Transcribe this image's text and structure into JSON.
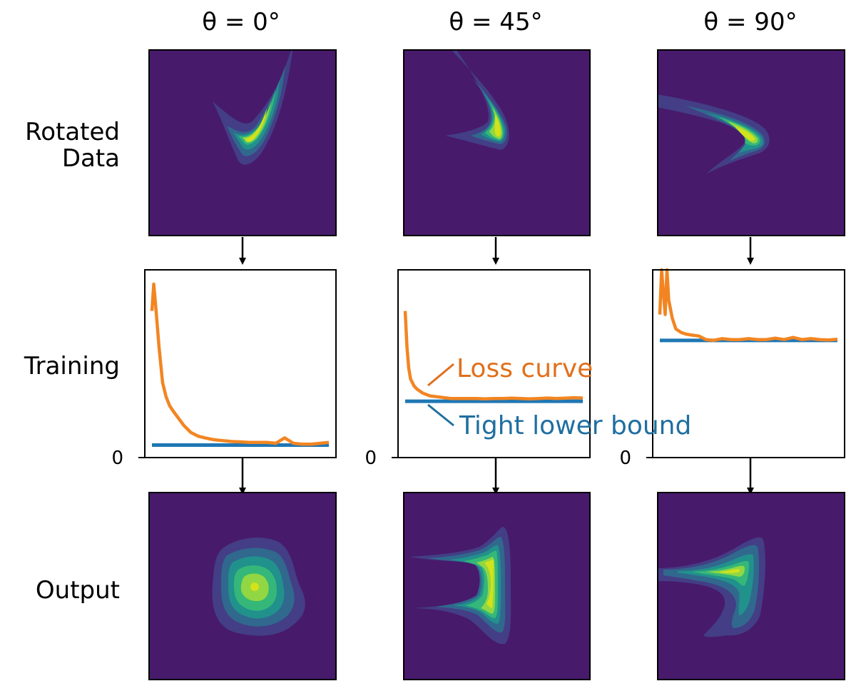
{
  "columns": [
    {
      "theta": "θ = 0°"
    },
    {
      "theta": "θ = 45°"
    },
    {
      "theta": "θ = 90°"
    }
  ],
  "row_labels": {
    "rotated_line1": "Rotated",
    "rotated_line2": "Data",
    "training": "Training",
    "output": "Output"
  },
  "annotations": {
    "loss_curve": "Loss curve",
    "lower_bound": "Tight lower bound"
  },
  "colors": {
    "background": "#481a6c",
    "viridis": [
      "#481a6c",
      "#433e85",
      "#31688e",
      "#21918c",
      "#35b779",
      "#90d743",
      "#d2e21b",
      "#fde725"
    ],
    "loss": "#f28522",
    "bound": "#1f77b4",
    "loss_label": "#e0701c",
    "bound_label": "#1f6fa0"
  },
  "chart_data": [
    {
      "type": "line",
      "title": "θ = 0°",
      "xlabel": "",
      "ylabel": "",
      "yticks": [
        "0"
      ],
      "ylim": [
        0,
        1.05
      ],
      "series": [
        {
          "name": "Loss curve",
          "x": [
            0,
            1,
            2,
            4,
            6,
            8,
            10,
            12,
            15,
            18,
            22,
            26,
            30,
            35,
            40,
            45,
            50,
            55,
            60,
            65,
            70,
            75,
            80,
            85,
            90,
            95,
            100
          ],
          "values": [
            0.82,
            0.97,
            0.86,
            0.62,
            0.42,
            0.34,
            0.29,
            0.26,
            0.22,
            0.18,
            0.14,
            0.12,
            0.11,
            0.1,
            0.095,
            0.09,
            0.088,
            0.085,
            0.085,
            0.085,
            0.08,
            0.11,
            0.08,
            0.075,
            0.075,
            0.08,
            0.085
          ]
        },
        {
          "name": "Tight lower bound",
          "x": [
            0,
            100
          ],
          "values": [
            0.07,
            0.07
          ]
        }
      ]
    },
    {
      "type": "line",
      "title": "θ = 45°",
      "xlabel": "",
      "ylabel": "",
      "yticks": [
        "0"
      ],
      "ylim": [
        0,
        1.05
      ],
      "series": [
        {
          "name": "Loss curve",
          "x": [
            0,
            1,
            2,
            3,
            5,
            7,
            10,
            14,
            18,
            22,
            26,
            30,
            35,
            40,
            45,
            50,
            55,
            60,
            65,
            70,
            75,
            80,
            85,
            90,
            95,
            100
          ],
          "values": [
            0.82,
            0.62,
            0.5,
            0.44,
            0.4,
            0.38,
            0.36,
            0.345,
            0.34,
            0.335,
            0.33,
            0.33,
            0.33,
            0.33,
            0.328,
            0.33,
            0.33,
            0.332,
            0.33,
            0.328,
            0.33,
            0.333,
            0.33,
            0.332,
            0.335,
            0.333
          ]
        },
        {
          "name": "Tight lower bound",
          "x": [
            0,
            100
          ],
          "values": [
            0.315,
            0.315
          ]
        }
      ]
    },
    {
      "type": "line",
      "title": "θ = 90°",
      "xlabel": "",
      "ylabel": "",
      "yticks": [
        "0"
      ],
      "ylim": [
        0,
        1.05
      ],
      "series": [
        {
          "name": "Loss curve",
          "x": [
            0,
            1,
            2,
            3,
            4,
            5,
            7,
            9,
            12,
            15,
            18,
            22,
            26,
            30,
            35,
            40,
            45,
            50,
            55,
            60,
            65,
            70,
            75,
            80,
            85,
            90,
            95,
            100
          ],
          "values": [
            0.8,
            1.05,
            0.92,
            0.8,
            1.05,
            0.88,
            0.78,
            0.72,
            0.7,
            0.69,
            0.685,
            0.68,
            0.66,
            0.655,
            0.665,
            0.66,
            0.66,
            0.665,
            0.66,
            0.66,
            0.668,
            0.66,
            0.672,
            0.66,
            0.665,
            0.66,
            0.658,
            0.662
          ]
        },
        {
          "name": "Tight lower bound",
          "x": [
            0,
            100
          ],
          "values": [
            0.655,
            0.655
          ]
        }
      ]
    }
  ]
}
